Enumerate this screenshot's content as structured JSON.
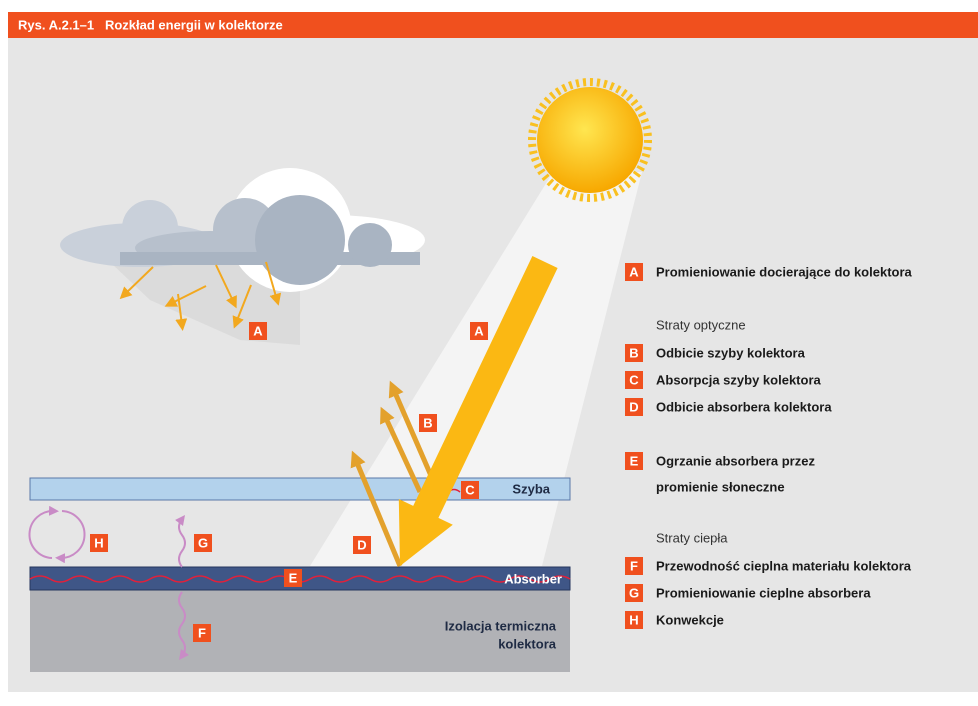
{
  "header": {
    "title": "Rys. A.2.1–1   Rozkład energii w kolektorze"
  },
  "diagram": {
    "markers": [
      "A",
      "A",
      "B",
      "C",
      "D",
      "E",
      "F",
      "G",
      "H"
    ],
    "layers": {
      "glass": "Szyba",
      "absorber": "Absorber",
      "insulation": [
        "Izolacja termiczna",
        "kolektora"
      ]
    }
  },
  "legend": {
    "groups": [
      {
        "items": [
          {
            "key": "A",
            "text": [
              "Promieniowanie docierające do kolektora"
            ]
          }
        ]
      },
      {
        "heading": "Straty optyczne",
        "items": [
          {
            "key": "B",
            "text": [
              "Odbicie szyby kolektora"
            ]
          },
          {
            "key": "C",
            "text": [
              "Absorpcja szyby kolektora"
            ]
          },
          {
            "key": "D",
            "text": [
              "Odbicie absorbera kolektora"
            ]
          }
        ]
      },
      {
        "items": [
          {
            "key": "E",
            "text": [
              "Ogrzanie absorbera przez",
              "promienie słoneczne"
            ]
          }
        ]
      },
      {
        "heading": "Straty ciepła",
        "items": [
          {
            "key": "F",
            "text": [
              "Przewodność cieplna materiału kolektora"
            ]
          },
          {
            "key": "G",
            "text": [
              "Promieniowanie cieplne absorbera"
            ]
          },
          {
            "key": "H",
            "text": [
              "Konwekcje"
            ]
          }
        ]
      }
    ]
  }
}
